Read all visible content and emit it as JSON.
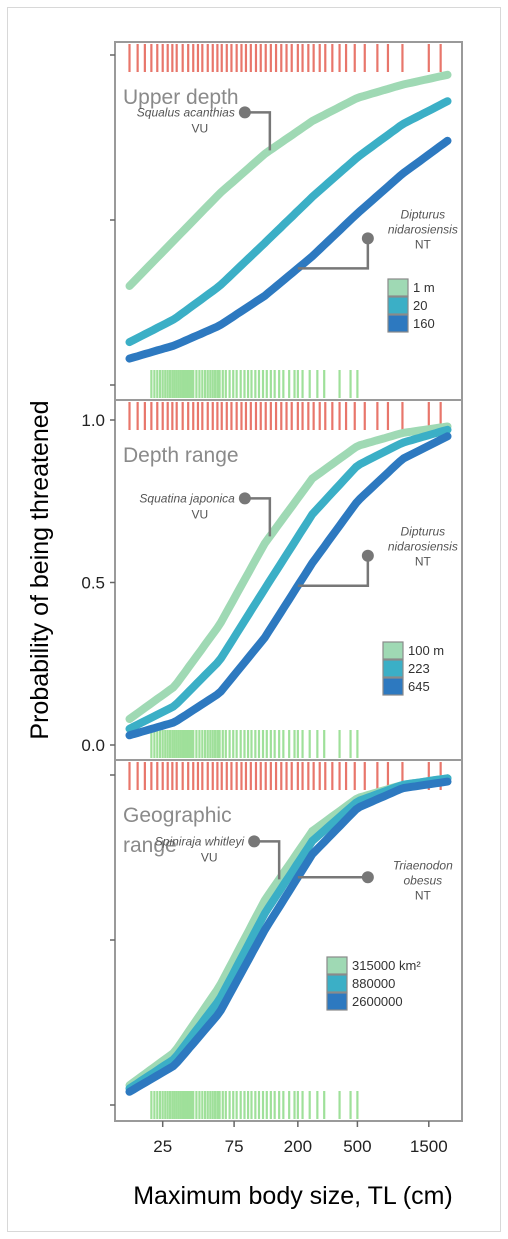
{
  "chart_data": {
    "type": "line",
    "xlabel": "Maximum body size, TL (cm)",
    "ylabel": "Probability of being threatened",
    "x_scale": "log",
    "x_ticks": [
      "25",
      "75",
      "200",
      "500",
      "1500"
    ],
    "x_tick_values": [
      25,
      75,
      200,
      500,
      1500
    ],
    "xlim": [
      12,
      2500
    ],
    "ylim": [
      0,
      1
    ],
    "y_tick_labels": [
      "0.0",
      "0.5",
      "1.0"
    ],
    "y_tick_values": [
      0,
      0.5,
      1
    ],
    "panels": [
      {
        "title": "Upper depth",
        "annotations": [
          {
            "species": "Squalus acanthias",
            "status": "VU",
            "series": 0,
            "x": 130
          },
          {
            "species": "Dipturus nidarosiensis",
            "status": "NT",
            "series": 2,
            "x": 200
          }
        ],
        "legend_title": "",
        "series": [
          {
            "name": "1 m",
            "color": "#9fd9b4",
            "x": [
              15,
              30,
              60,
              120,
              250,
              500,
              1000,
              2000
            ],
            "y": [
              0.3,
              0.44,
              0.58,
              0.7,
              0.8,
              0.87,
              0.91,
              0.94
            ]
          },
          {
            "name": "20",
            "color": "#3bafc6",
            "x": [
              15,
              30,
              60,
              120,
              250,
              500,
              1000,
              2000
            ],
            "y": [
              0.13,
              0.2,
              0.3,
              0.43,
              0.57,
              0.69,
              0.79,
              0.86
            ]
          },
          {
            "name": "160",
            "color": "#2d79c0",
            "x": [
              15,
              30,
              60,
              120,
              250,
              500,
              1000,
              2000
            ],
            "y": [
              0.08,
              0.12,
              0.18,
              0.27,
              0.39,
              0.52,
              0.64,
              0.74
            ]
          }
        ]
      },
      {
        "title": "Depth range",
        "annotations": [
          {
            "species": "Squatina japonica",
            "status": "VU",
            "series": 0,
            "x": 130
          },
          {
            "species": "Dipturus nidarosiensis",
            "status": "NT",
            "series": 2,
            "x": 200
          }
        ],
        "series": [
          {
            "name": "100 m",
            "color": "#9fd9b4",
            "x": [
              15,
              30,
              60,
              120,
              250,
              500,
              1000,
              2000
            ],
            "y": [
              0.08,
              0.18,
              0.37,
              0.62,
              0.82,
              0.92,
              0.96,
              0.98
            ]
          },
          {
            "name": "223",
            "color": "#3bafc6",
            "x": [
              15,
              30,
              60,
              120,
              250,
              500,
              1000,
              2000
            ],
            "y": [
              0.05,
              0.12,
              0.26,
              0.48,
              0.71,
              0.86,
              0.93,
              0.97
            ]
          },
          {
            "name": "645",
            "color": "#2d79c0",
            "x": [
              15,
              30,
              60,
              120,
              250,
              500,
              1000,
              2000
            ],
            "y": [
              0.03,
              0.07,
              0.16,
              0.33,
              0.56,
              0.75,
              0.88,
              0.95
            ]
          }
        ]
      },
      {
        "title": "Geographic range",
        "title_lines": [
          "Geographic",
          "range"
        ],
        "annotations": [
          {
            "species": "Spiniraja whitleyi",
            "status": "VU",
            "series": 0,
            "x": 150
          },
          {
            "species": "Triaenodon obesus",
            "status": "NT",
            "series": 2,
            "x": 200
          }
        ],
        "series": [
          {
            "name": "315000 km²",
            "color": "#9fd9b4",
            "x": [
              15,
              30,
              60,
              120,
              250,
              500,
              1000,
              2000
            ],
            "y": [
              0.06,
              0.16,
              0.36,
              0.62,
              0.83,
              0.93,
              0.97,
              0.99
            ]
          },
          {
            "name": "880000",
            "color": "#3bafc6",
            "x": [
              15,
              30,
              60,
              120,
              250,
              500,
              1000,
              2000
            ],
            "y": [
              0.05,
              0.14,
              0.32,
              0.58,
              0.8,
              0.92,
              0.97,
              0.99
            ]
          },
          {
            "name": "2600000",
            "color": "#2d79c0",
            "x": [
              15,
              30,
              60,
              120,
              250,
              500,
              1000,
              2000
            ],
            "y": [
              0.04,
              0.12,
              0.28,
              0.53,
              0.76,
              0.9,
              0.96,
              0.98
            ]
          }
        ]
      }
    ],
    "rug_threatened_color": "#e8766b",
    "rug_nonthreatened_color": "#9fe09a",
    "rug_threatened_x": [
      15,
      17,
      19,
      21,
      23,
      25,
      27,
      29,
      31,
      34,
      37,
      40,
      43,
      46,
      50,
      54,
      58,
      62,
      67,
      72,
      78,
      84,
      90,
      97,
      105,
      113,
      122,
      132,
      143,
      155,
      168,
      182,
      200,
      215,
      235,
      255,
      280,
      305,
      340,
      380,
      420,
      480,
      560,
      680,
      800,
      1000,
      1500,
      1800
    ],
    "rug_nonthreatened_x": [
      21,
      22,
      23,
      24,
      25,
      26,
      27,
      28,
      29,
      30,
      31,
      32,
      33,
      34,
      35,
      36,
      37,
      38,
      39,
      40,
      42,
      44,
      46,
      48,
      50,
      52,
      54,
      56,
      58,
      60,
      63,
      66,
      70,
      74,
      78,
      83,
      88,
      93,
      98,
      104,
      110,
      117,
      124,
      132,
      140,
      150,
      160,
      175,
      190,
      200,
      215,
      240,
      270,
      300,
      380,
      450,
      500
    ]
  }
}
